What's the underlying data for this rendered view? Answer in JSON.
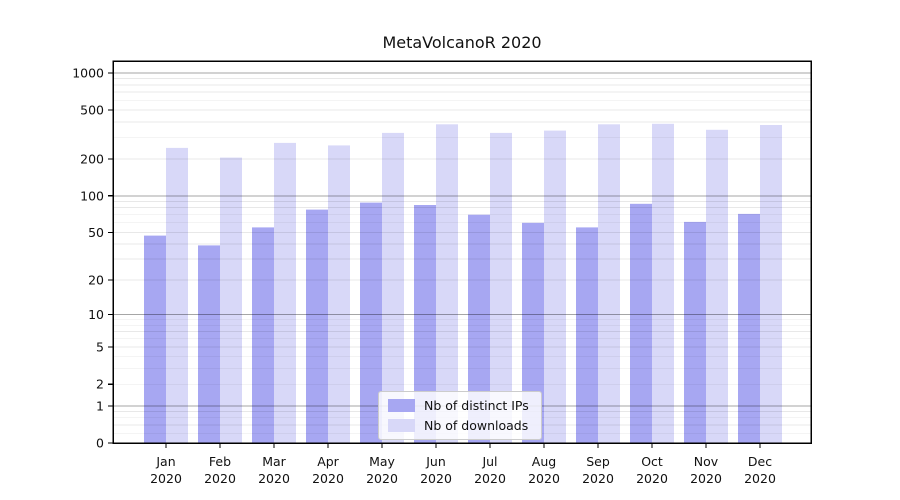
{
  "chart_data": {
    "type": "bar",
    "title": "MetaVolcanoR 2020",
    "categories": [
      "Jan",
      "Feb",
      "Mar",
      "Apr",
      "May",
      "Jun",
      "Jul",
      "Aug",
      "Sep",
      "Oct",
      "Nov",
      "Dec"
    ],
    "year": "2020",
    "yticks": [
      0,
      1,
      2,
      5,
      10,
      20,
      50,
      100,
      200,
      500,
      1000
    ],
    "yscale": "log1p",
    "ylim": [
      0,
      1250
    ],
    "grid": "on",
    "legend_position": "bottom-center",
    "series": [
      {
        "name": "Nb of distinct IPs",
        "color": "#a7a7f2",
        "values": [
          47,
          39,
          55,
          77,
          88,
          84,
          70,
          60,
          55,
          86,
          61,
          71
        ]
      },
      {
        "name": "Nb of downloads",
        "color": "#d8d8f8",
        "values": [
          246,
          205,
          270,
          258,
          326,
          383,
          326,
          340,
          383,
          386,
          345,
          378
        ]
      }
    ]
  },
  "colors": {
    "major_grid": "rgba(0,0,0,0.35)",
    "minor_grid": "rgba(0,0,0,0.09)",
    "axis": "#000000",
    "text": "#111111"
  }
}
